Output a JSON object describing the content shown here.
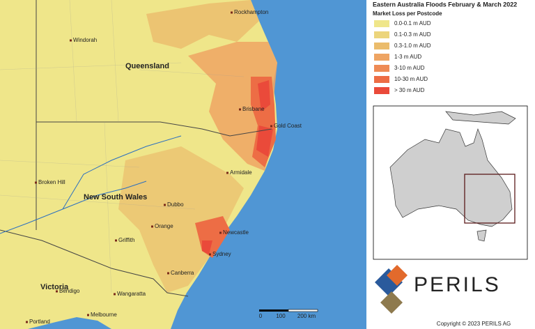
{
  "header": {
    "title": "Eastern Australia Floods February & March 2022",
    "subtitle": "Market Loss per Postcode"
  },
  "legend": {
    "items": [
      {
        "label": "0.0-0.1 m AUD",
        "color": "#efe68a"
      },
      {
        "label": "0.1-0.3 m AUD",
        "color": "#ecd57c"
      },
      {
        "label": "0.3-1.0 m AUD",
        "color": "#ebbc6c"
      },
      {
        "label": "1-3 m AUD",
        "color": "#eea463"
      },
      {
        "label": "3-10 m AUD",
        "color": "#ee8b55"
      },
      {
        "label": "10-30 m AUD",
        "color": "#ed6d45"
      },
      {
        "label": "> 30 m AUD",
        "color": "#ea4a3a"
      }
    ]
  },
  "map": {
    "regions": [
      "Queensland",
      "New South Wales",
      "Victoria"
    ],
    "places": [
      "Rockhampton",
      "Windorah",
      "Brisbane",
      "Gold Coast",
      "Broken Hill",
      "Armidale",
      "Dubbo",
      "Orange",
      "Newcastle",
      "Griffith",
      "Sydney",
      "Canberra",
      "Bendigo",
      "Wangaratta",
      "Melbourne",
      "Portland"
    ],
    "scale_bar": [
      "0",
      "100",
      "200 km"
    ]
  },
  "logo": {
    "text": "PERILS"
  },
  "footer": {
    "copyright": "Copyright © 2023 PERILS AG"
  }
}
